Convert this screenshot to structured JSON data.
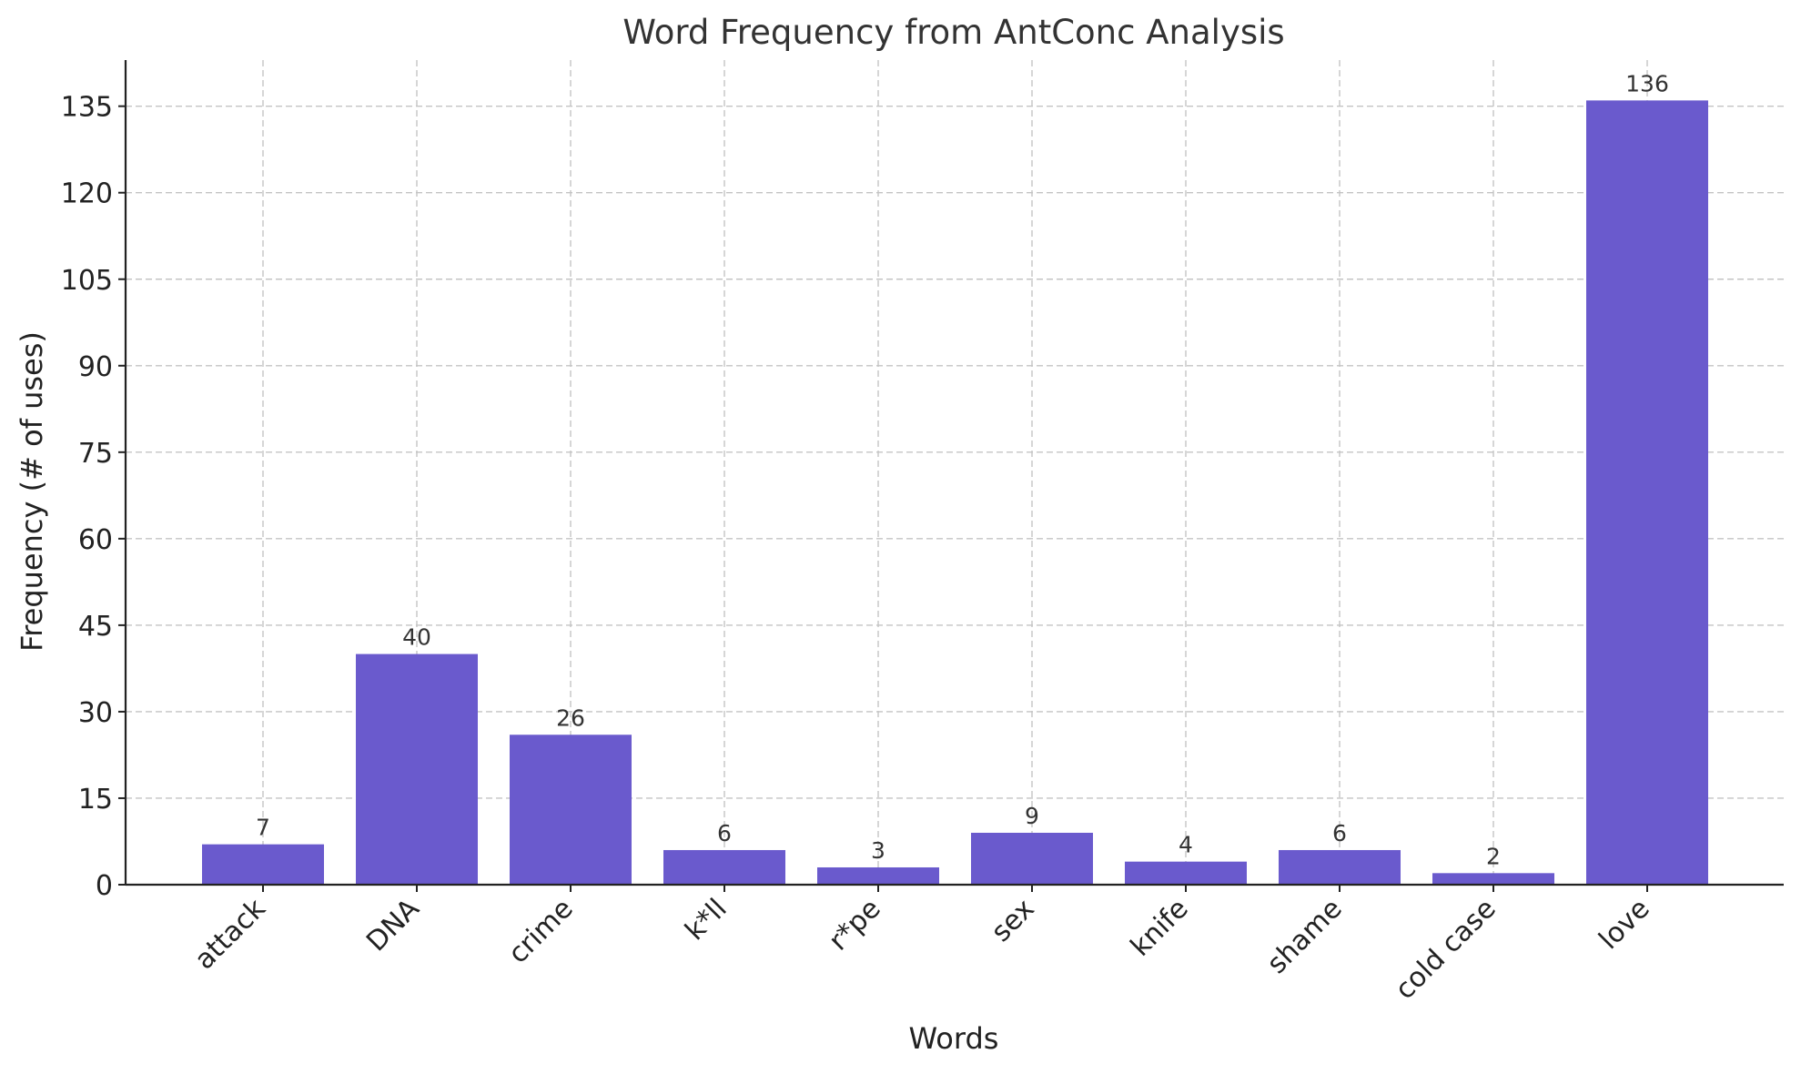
{
  "chart_data": {
    "type": "bar",
    "title": "Word Frequency from AntConc Analysis",
    "xlabel": "Words",
    "ylabel": "Frequency (# of uses)",
    "categories": [
      "attack",
      "DNA",
      "crime",
      "k*ll",
      "r*pe",
      "sex",
      "knife",
      "shame",
      "cold case",
      "love"
    ],
    "values": [
      7,
      40,
      26,
      6,
      3,
      9,
      4,
      6,
      2,
      136
    ],
    "ylim": [
      0,
      143
    ],
    "yticks": [
      0,
      15,
      30,
      45,
      60,
      75,
      90,
      105,
      120,
      135
    ],
    "grid": true,
    "bar_color": "#6a5acd",
    "data_labels": true
  }
}
